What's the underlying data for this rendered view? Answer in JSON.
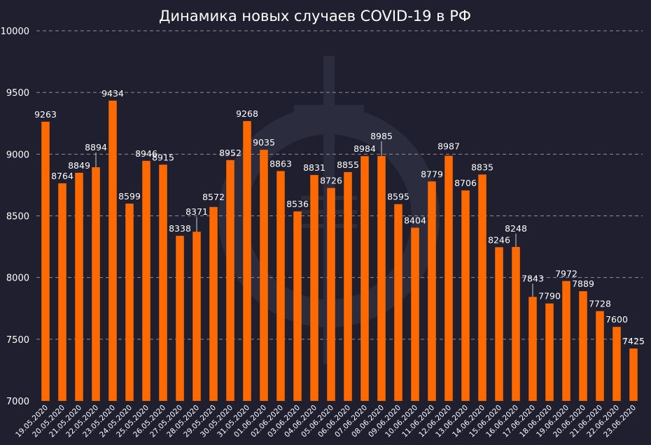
{
  "chart_data": {
    "type": "bar",
    "title": "Динамика новых случаев COVID-19 в РФ",
    "xlabel": "",
    "ylabel": "",
    "ylim": [
      7000,
      10000
    ],
    "yticks": [
      7000,
      7500,
      8000,
      8500,
      9000,
      9500,
      10000
    ],
    "grid": true,
    "bar_color": "#ff6a00",
    "categories": [
      "19.05.2020",
      "20.05.2020",
      "21.05.2020",
      "22.05.2020",
      "23.05.2020",
      "24.05.2020",
      "25.05.2020",
      "26.05.2020",
      "27.05.2020",
      "28.05.2020",
      "29.05.2020",
      "30.05.2020",
      "31.05.2020",
      "01.06.2020",
      "02.06.2020",
      "03.06.2020",
      "04.06.2020",
      "05.06.2020",
      "06.06.2020",
      "07.06.2020",
      "08.06.2020",
      "09.06.2020",
      "10.06.2020",
      "11.06.2020",
      "12.06.2020",
      "13.06.2020",
      "14.06.2020",
      "15.06.2020",
      "16.06.2020",
      "17.06.2020",
      "18.06.2020",
      "19.06.2020",
      "20.06.2020",
      "21.06.2020",
      "22.06.2020",
      "23.06.2020"
    ],
    "values": [
      9263,
      8764,
      8849,
      8894,
      9434,
      8599,
      8946,
      8915,
      8338,
      8371,
      8572,
      8952,
      9268,
      9035,
      8863,
      8536,
      8831,
      8726,
      8855,
      8984,
      8985,
      8595,
      8404,
      8779,
      8987,
      8706,
      8835,
      8246,
      8248,
      7843,
      7790,
      7972,
      7889,
      7728,
      7600,
      7425
    ]
  }
}
